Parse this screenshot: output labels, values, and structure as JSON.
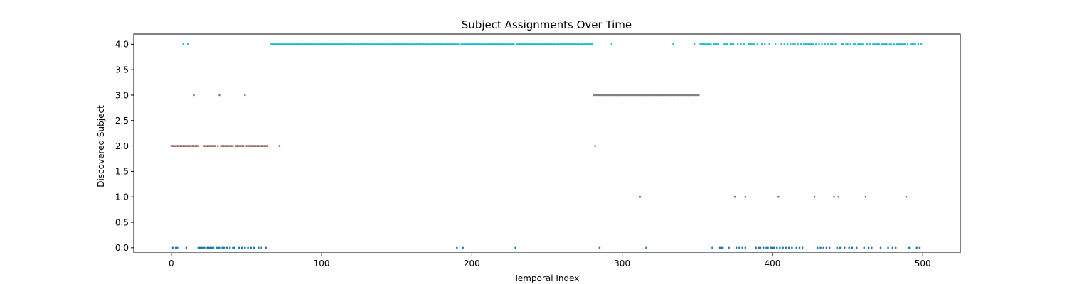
{
  "chart_data": {
    "type": "scatter",
    "title": "Subject Assignments Over Time",
    "xlabel": "Temporal Index",
    "ylabel": "Discovered Subject",
    "xlim": [
      -25,
      525
    ],
    "ylim": [
      -0.1,
      4.2
    ],
    "xticks": [
      0,
      100,
      200,
      300,
      400,
      500
    ],
    "xtick_labels": [
      "0",
      "100",
      "200",
      "300",
      "400",
      "500"
    ],
    "yticks": [
      0.0,
      0.5,
      1.0,
      1.5,
      2.0,
      2.5,
      3.0,
      3.5,
      4.0
    ],
    "ytick_labels": [
      "0.0",
      "0.5",
      "1.0",
      "1.5",
      "2.0",
      "2.5",
      "3.0",
      "3.5",
      "4.0"
    ],
    "grid": false,
    "legend": "none",
    "category_colors": {
      "0": "#1f77b4",
      "1": "#2ca02c",
      "2": "#8c564b",
      "3": "#7f7f7f",
      "4": "#17becf"
    },
    "series": [
      {
        "subject": 0,
        "x": [
          1,
          3,
          4,
          10,
          18,
          19,
          20,
          21,
          22,
          24,
          25,
          26,
          27,
          28,
          30,
          31,
          32,
          34,
          35,
          37,
          39,
          41,
          42,
          45,
          47,
          49,
          51,
          53,
          55,
          58,
          60,
          63,
          190,
          194,
          229,
          285,
          316,
          360,
          365,
          366,
          367,
          371,
          376,
          378,
          380,
          382,
          389,
          391,
          392,
          394,
          396,
          397,
          399,
          400,
          401,
          403,
          405,
          407,
          409,
          411,
          413,
          416,
          418,
          420,
          430,
          432,
          434,
          436,
          438,
          443,
          445,
          448,
          451,
          453,
          456,
          461,
          464,
          466,
          472,
          477,
          480,
          482,
          491,
          496,
          498
        ],
        "y": 0
      },
      {
        "subject": 1,
        "x": [
          312,
          375,
          382,
          404,
          428,
          441,
          444,
          462,
          489
        ],
        "y": 1
      },
      {
        "subject": 2,
        "x": [
          0,
          1,
          2,
          3,
          4,
          5,
          6,
          7,
          8,
          9,
          10,
          11,
          12,
          13,
          14,
          15,
          16,
          17,
          18,
          22,
          23,
          24,
          25,
          26,
          27,
          28,
          29,
          31,
          33,
          34,
          35,
          36,
          37,
          38,
          39,
          40,
          41,
          43,
          44,
          45,
          46,
          47,
          48,
          50,
          51,
          52,
          53,
          54,
          55,
          56,
          57,
          58,
          59,
          60,
          61,
          62,
          63,
          64,
          72,
          282
        ],
        "y": 2
      },
      {
        "subject": 3,
        "x": [
          15,
          32,
          49,
          281,
          282,
          283,
          284,
          285,
          286,
          287,
          288,
          289,
          290,
          291,
          292,
          293,
          294,
          295,
          296,
          297,
          298,
          299,
          300,
          301,
          302,
          303,
          304,
          305,
          306,
          307,
          308,
          309,
          310,
          311,
          312,
          313,
          314,
          315,
          316,
          317,
          318,
          319,
          320,
          321,
          322,
          323,
          324,
          325,
          326,
          327,
          328,
          329,
          330,
          331,
          332,
          333,
          334,
          335,
          336,
          337,
          338,
          339,
          340,
          341,
          342,
          343,
          344,
          345,
          346,
          347,
          348,
          349,
          350,
          351
        ],
        "y": 3
      },
      {
        "subject": 4,
        "x": [
          8,
          11,
          66,
          67,
          68,
          69,
          70,
          71,
          72,
          73,
          74,
          75,
          76,
          77,
          78,
          79,
          80,
          81,
          82,
          83,
          84,
          85,
          86,
          87,
          88,
          89,
          90,
          91,
          92,
          93,
          94,
          95,
          96,
          97,
          98,
          99,
          100,
          101,
          102,
          103,
          104,
          105,
          106,
          107,
          108,
          109,
          110,
          111,
          112,
          113,
          114,
          115,
          116,
          117,
          118,
          119,
          120,
          121,
          122,
          123,
          124,
          125,
          126,
          127,
          128,
          129,
          130,
          131,
          132,
          133,
          134,
          135,
          136,
          137,
          138,
          139,
          140,
          141,
          142,
          143,
          144,
          145,
          146,
          147,
          148,
          149,
          150,
          151,
          152,
          153,
          154,
          155,
          156,
          157,
          158,
          159,
          160,
          161,
          162,
          163,
          164,
          165,
          166,
          167,
          168,
          169,
          170,
          171,
          172,
          173,
          174,
          175,
          176,
          177,
          178,
          179,
          180,
          181,
          182,
          183,
          184,
          185,
          186,
          187,
          188,
          189,
          190,
          191,
          193,
          194,
          195,
          196,
          197,
          198,
          199,
          200,
          201,
          202,
          203,
          204,
          205,
          206,
          207,
          208,
          209,
          210,
          211,
          212,
          213,
          214,
          215,
          216,
          217,
          218,
          219,
          220,
          221,
          222,
          223,
          224,
          225,
          226,
          227,
          228,
          230,
          231,
          232,
          233,
          234,
          235,
          236,
          237,
          238,
          239,
          240,
          241,
          242,
          243,
          244,
          245,
          246,
          247,
          248,
          249,
          250,
          251,
          252,
          253,
          254,
          255,
          256,
          257,
          258,
          259,
          260,
          261,
          262,
          263,
          264,
          265,
          266,
          267,
          268,
          269,
          270,
          271,
          272,
          273,
          274,
          275,
          276,
          277,
          278,
          279,
          280,
          293,
          334,
          348,
          352,
          353,
          354,
          355,
          356,
          357,
          358,
          359,
          361,
          362,
          363,
          364,
          368,
          369,
          370,
          372,
          373,
          374,
          377,
          379,
          381,
          384,
          385,
          386,
          387,
          388,
          390,
          393,
          395,
          398,
          402,
          406,
          408,
          410,
          412,
          414,
          415,
          417,
          419,
          421,
          422,
          423,
          424,
          425,
          426,
          427,
          429,
          431,
          433,
          435,
          437,
          439,
          440,
          442,
          446,
          447,
          449,
          450,
          452,
          454,
          455,
          457,
          458,
          459,
          460,
          463,
          465,
          467,
          468,
          469,
          470,
          471,
          473,
          474,
          475,
          476,
          478,
          479,
          481,
          483,
          484,
          485,
          486,
          487,
          488,
          490,
          492,
          493,
          494,
          495,
          497,
          499
        ],
        "y": 4
      }
    ]
  }
}
